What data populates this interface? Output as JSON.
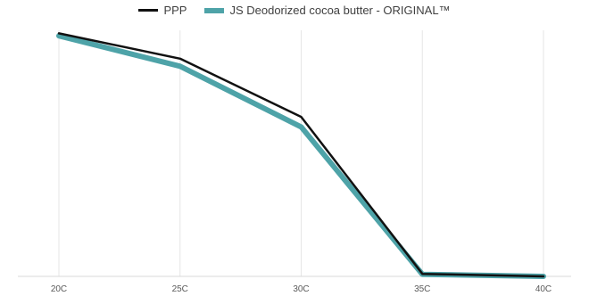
{
  "chart_data": {
    "type": "line",
    "title": "",
    "xlabel": "",
    "ylabel": "",
    "categories": [
      "20C",
      "25C",
      "30C",
      "35C",
      "40C"
    ],
    "series": [
      {
        "name": "PPP",
        "values": [
          96,
          86,
          63,
          1,
          0
        ],
        "color": "#111111"
      },
      {
        "name": "JS Deodorized cocoa butter - ORIGINAL™",
        "values": [
          95,
          83,
          59,
          0.8,
          0
        ],
        "color": "#4ea3a8"
      }
    ],
    "ylim": [
      0,
      100
    ],
    "grid": "vertical",
    "legend": "top-center",
    "y_axis_labels_shown": false
  }
}
